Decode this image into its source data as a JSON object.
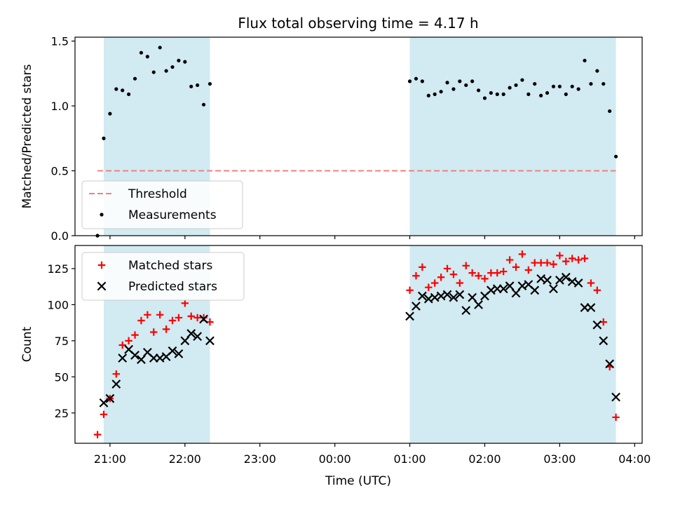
{
  "chart_data": {
    "type": "scatter",
    "title": "Flux total observing time = 4.17 h",
    "xlabel": "Time (UTC)",
    "x_ticks": [
      "21:00",
      "22:00",
      "23:00",
      "00:00",
      "01:00",
      "02:00",
      "03:00",
      "04:00"
    ],
    "x_range": [
      "20:32",
      "04:06"
    ],
    "shaded_intervals": [
      [
        "20:55",
        "22:20"
      ],
      [
        "01:00",
        "03:45"
      ]
    ],
    "shade_color": "#add8e6",
    "panels": [
      {
        "name": "ratio",
        "ylabel": "Matched/Predicted stars",
        "ylim": [
          0,
          1.53
        ],
        "y_ticks": [
          "0.0",
          "0.5",
          "1.0",
          "1.5"
        ],
        "legend_position": "lower-left",
        "threshold": {
          "name": "Threshold",
          "value": 0.5,
          "x_start": "20:50",
          "x_end": "03:45",
          "color": "#f08080"
        },
        "series": [
          {
            "name": "Measurements",
            "color": "#000000",
            "marker": "dot",
            "points": [
              [
                "20:50",
                0.0
              ],
              [
                "20:55",
                0.75
              ],
              [
                "21:00",
                0.94
              ],
              [
                "21:05",
                1.13
              ],
              [
                "21:10",
                1.12
              ],
              [
                "21:15",
                1.09
              ],
              [
                "21:20",
                1.21
              ],
              [
                "21:25",
                1.41
              ],
              [
                "21:30",
                1.38
              ],
              [
                "21:35",
                1.26
              ],
              [
                "21:40",
                1.45
              ],
              [
                "21:45",
                1.27
              ],
              [
                "21:50",
                1.3
              ],
              [
                "21:55",
                1.35
              ],
              [
                "22:00",
                1.34
              ],
              [
                "22:05",
                1.15
              ],
              [
                "22:10",
                1.16
              ],
              [
                "22:15",
                1.01
              ],
              [
                "22:20",
                1.17
              ],
              [
                "01:00",
                1.19
              ],
              [
                "01:05",
                1.21
              ],
              [
                "01:10",
                1.19
              ],
              [
                "01:15",
                1.08
              ],
              [
                "01:20",
                1.09
              ],
              [
                "01:25",
                1.11
              ],
              [
                "01:30",
                1.18
              ],
              [
                "01:35",
                1.13
              ],
              [
                "01:40",
                1.19
              ],
              [
                "01:45",
                1.16
              ],
              [
                "01:50",
                1.19
              ],
              [
                "01:55",
                1.12
              ],
              [
                "02:00",
                1.06
              ],
              [
                "02:05",
                1.1
              ],
              [
                "02:10",
                1.09
              ],
              [
                "02:15",
                1.09
              ],
              [
                "02:20",
                1.14
              ],
              [
                "02:25",
                1.16
              ],
              [
                "02:30",
                1.2
              ],
              [
                "02:35",
                1.09
              ],
              [
                "02:40",
                1.17
              ],
              [
                "02:45",
                1.08
              ],
              [
                "02:50",
                1.1
              ],
              [
                "02:55",
                1.15
              ],
              [
                "03:00",
                1.15
              ],
              [
                "03:05",
                1.09
              ],
              [
                "03:10",
                1.15
              ],
              [
                "03:15",
                1.13
              ],
              [
                "03:20",
                1.35
              ],
              [
                "03:25",
                1.17
              ],
              [
                "03:30",
                1.27
              ],
              [
                "03:35",
                1.17
              ],
              [
                "03:40",
                0.96
              ],
              [
                "03:45",
                0.61
              ]
            ]
          }
        ]
      },
      {
        "name": "counts",
        "ylabel": "Count",
        "ylim": [
          4,
          141
        ],
        "y_ticks": [
          "25",
          "50",
          "75",
          "100",
          "125"
        ],
        "legend_position": "upper-left",
        "series": [
          {
            "name": "Matched stars",
            "color": "#ff0000",
            "marker": "plus",
            "points": [
              [
                "20:50",
                10
              ],
              [
                "20:55",
                24
              ],
              [
                "21:00",
                35
              ],
              [
                "21:05",
                52
              ],
              [
                "21:10",
                72
              ],
              [
                "21:15",
                75
              ],
              [
                "21:20",
                79
              ],
              [
                "21:25",
                89
              ],
              [
                "21:30",
                93
              ],
              [
                "21:35",
                81
              ],
              [
                "21:40",
                93
              ],
              [
                "21:45",
                83
              ],
              [
                "21:50",
                89
              ],
              [
                "21:55",
                91
              ],
              [
                "22:00",
                101
              ],
              [
                "22:05",
                92
              ],
              [
                "22:10",
                91
              ],
              [
                "22:15",
                91
              ],
              [
                "22:20",
                88
              ],
              [
                "01:00",
                110
              ],
              [
                "01:05",
                120
              ],
              [
                "01:10",
                126
              ],
              [
                "01:15",
                112
              ],
              [
                "01:20",
                115
              ],
              [
                "01:25",
                119
              ],
              [
                "01:30",
                125
              ],
              [
                "01:35",
                121
              ],
              [
                "01:40",
                115
              ],
              [
                "01:45",
                127
              ],
              [
                "01:50",
                122
              ],
              [
                "01:55",
                120
              ],
              [
                "02:00",
                118
              ],
              [
                "02:05",
                122
              ],
              [
                "02:10",
                122
              ],
              [
                "02:15",
                123
              ],
              [
                "02:20",
                131
              ],
              [
                "02:25",
                126
              ],
              [
                "02:30",
                135
              ],
              [
                "02:35",
                124
              ],
              [
                "02:40",
                129
              ],
              [
                "02:45",
                129
              ],
              [
                "02:50",
                129
              ],
              [
                "02:55",
                128
              ],
              [
                "03:00",
                134
              ],
              [
                "03:05",
                130
              ],
              [
                "03:10",
                132
              ],
              [
                "03:15",
                131
              ],
              [
                "03:20",
                132
              ],
              [
                "03:25",
                115
              ],
              [
                "03:30",
                110
              ],
              [
                "03:35",
                88
              ],
              [
                "03:40",
                57
              ],
              [
                "03:45",
                22
              ]
            ]
          },
          {
            "name": "Predicted stars",
            "color": "#000000",
            "marker": "cross",
            "points": [
              [
                "20:55",
                32
              ],
              [
                "21:00",
                35
              ],
              [
                "21:05",
                45
              ],
              [
                "21:10",
                63
              ],
              [
                "21:15",
                69
              ],
              [
                "21:20",
                65
              ],
              [
                "21:25",
                62
              ],
              [
                "21:30",
                67
              ],
              [
                "21:35",
                63
              ],
              [
                "21:40",
                63
              ],
              [
                "21:45",
                64
              ],
              [
                "21:50",
                68
              ],
              [
                "21:55",
                66
              ],
              [
                "22:00",
                75
              ],
              [
                "22:05",
                80
              ],
              [
                "22:10",
                78
              ],
              [
                "22:15",
                90
              ],
              [
                "22:20",
                75
              ],
              [
                "01:00",
                92
              ],
              [
                "01:05",
                99
              ],
              [
                "01:10",
                106
              ],
              [
                "01:15",
                104
              ],
              [
                "01:20",
                105
              ],
              [
                "01:25",
                106
              ],
              [
                "01:30",
                107
              ],
              [
                "01:35",
                105
              ],
              [
                "01:40",
                107
              ],
              [
                "01:45",
                96
              ],
              [
                "01:50",
                105
              ],
              [
                "01:55",
                100
              ],
              [
                "02:00",
                106
              ],
              [
                "02:05",
                110
              ],
              [
                "02:10",
                111
              ],
              [
                "02:15",
                111
              ],
              [
                "02:20",
                113
              ],
              [
                "02:25",
                108
              ],
              [
                "02:30",
                113
              ],
              [
                "02:35",
                114
              ],
              [
                "02:40",
                110
              ],
              [
                "02:45",
                118
              ],
              [
                "02:50",
                117
              ],
              [
                "02:55",
                111
              ],
              [
                "03:00",
                117
              ],
              [
                "03:05",
                119
              ],
              [
                "03:10",
                116
              ],
              [
                "03:15",
                115
              ],
              [
                "03:20",
                98
              ],
              [
                "03:25",
                98
              ],
              [
                "03:30",
                86
              ],
              [
                "03:35",
                75
              ],
              [
                "03:40",
                59
              ],
              [
                "03:45",
                36
              ]
            ]
          }
        ]
      }
    ]
  }
}
